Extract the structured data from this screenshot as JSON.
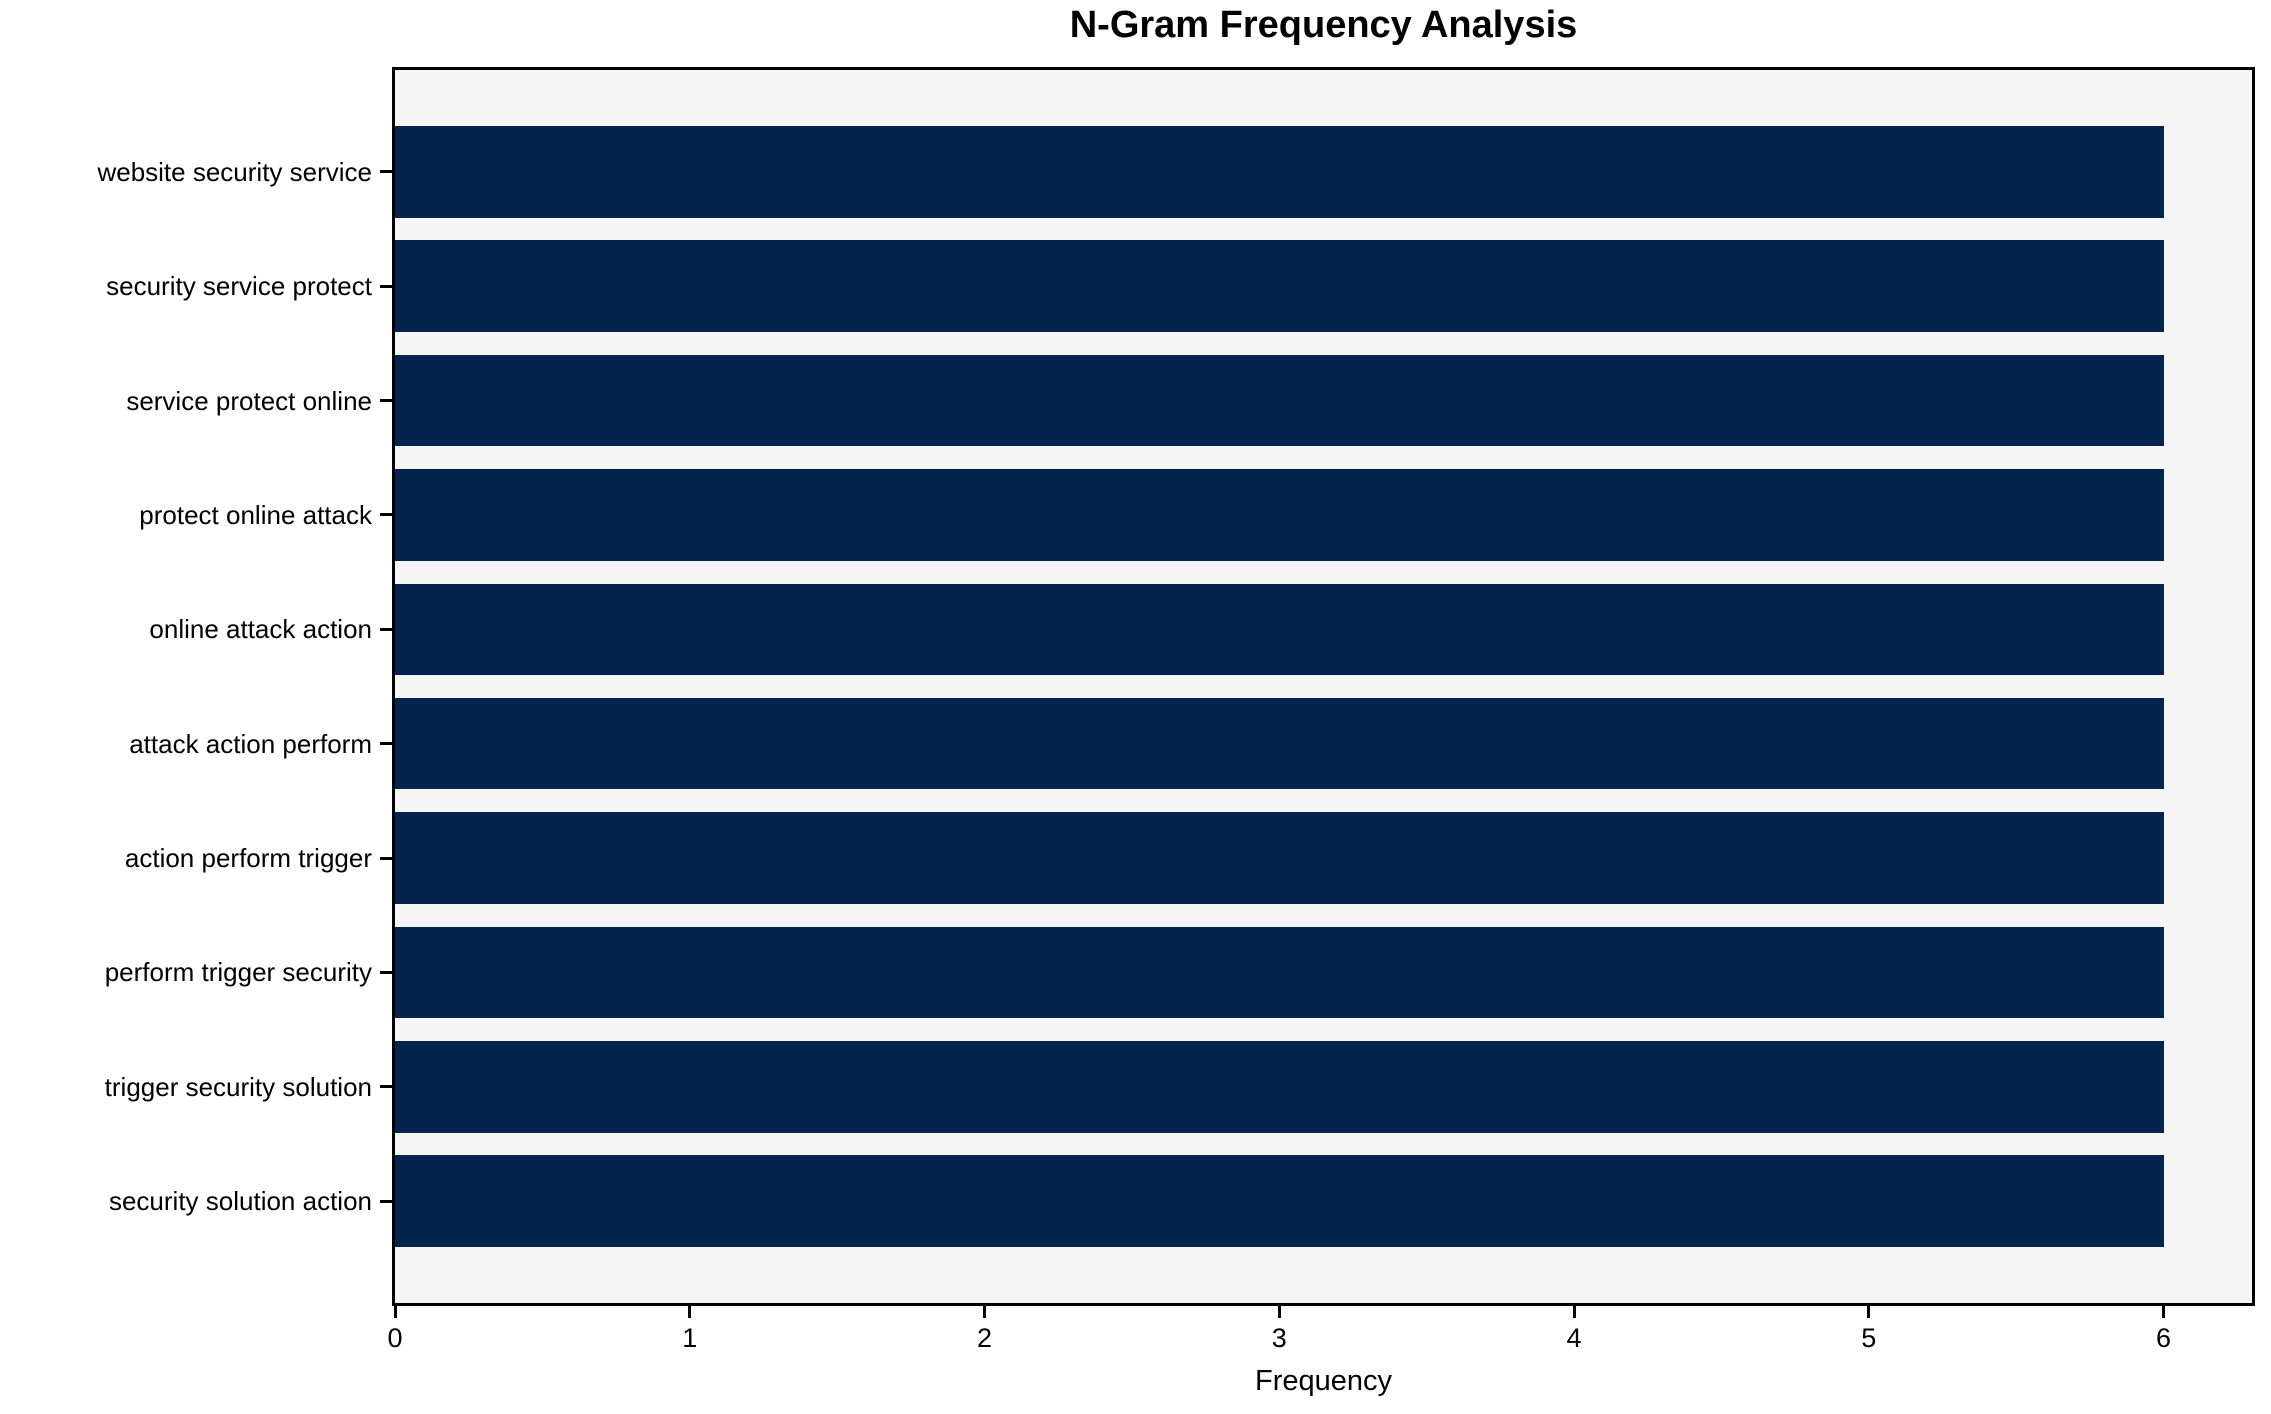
{
  "figure": {
    "title": "N-Gram Frequency Analysis"
  },
  "chart_data": {
    "type": "bar",
    "orientation": "horizontal",
    "title": "N-Gram Frequency Analysis",
    "xlabel": "Frequency",
    "ylabel": "",
    "categories": [
      "website security service",
      "security service protect",
      "service protect online",
      "protect online attack",
      "online attack action",
      "attack action perform",
      "action perform trigger",
      "perform trigger security",
      "trigger security solution",
      "security solution action"
    ],
    "values": [
      6,
      6,
      6,
      6,
      6,
      6,
      6,
      6,
      6,
      6
    ],
    "xticks": [
      0,
      1,
      2,
      3,
      4,
      5,
      6
    ],
    "xlim": [
      0,
      6.3
    ],
    "bar_width_fraction": 0.8,
    "grid": false,
    "legend": null,
    "colors": {
      "bar": "#04234d",
      "plot_background": "#f5f5f5",
      "figure_background": "#ffffff",
      "spine": "#000000",
      "text": "#000000"
    }
  }
}
